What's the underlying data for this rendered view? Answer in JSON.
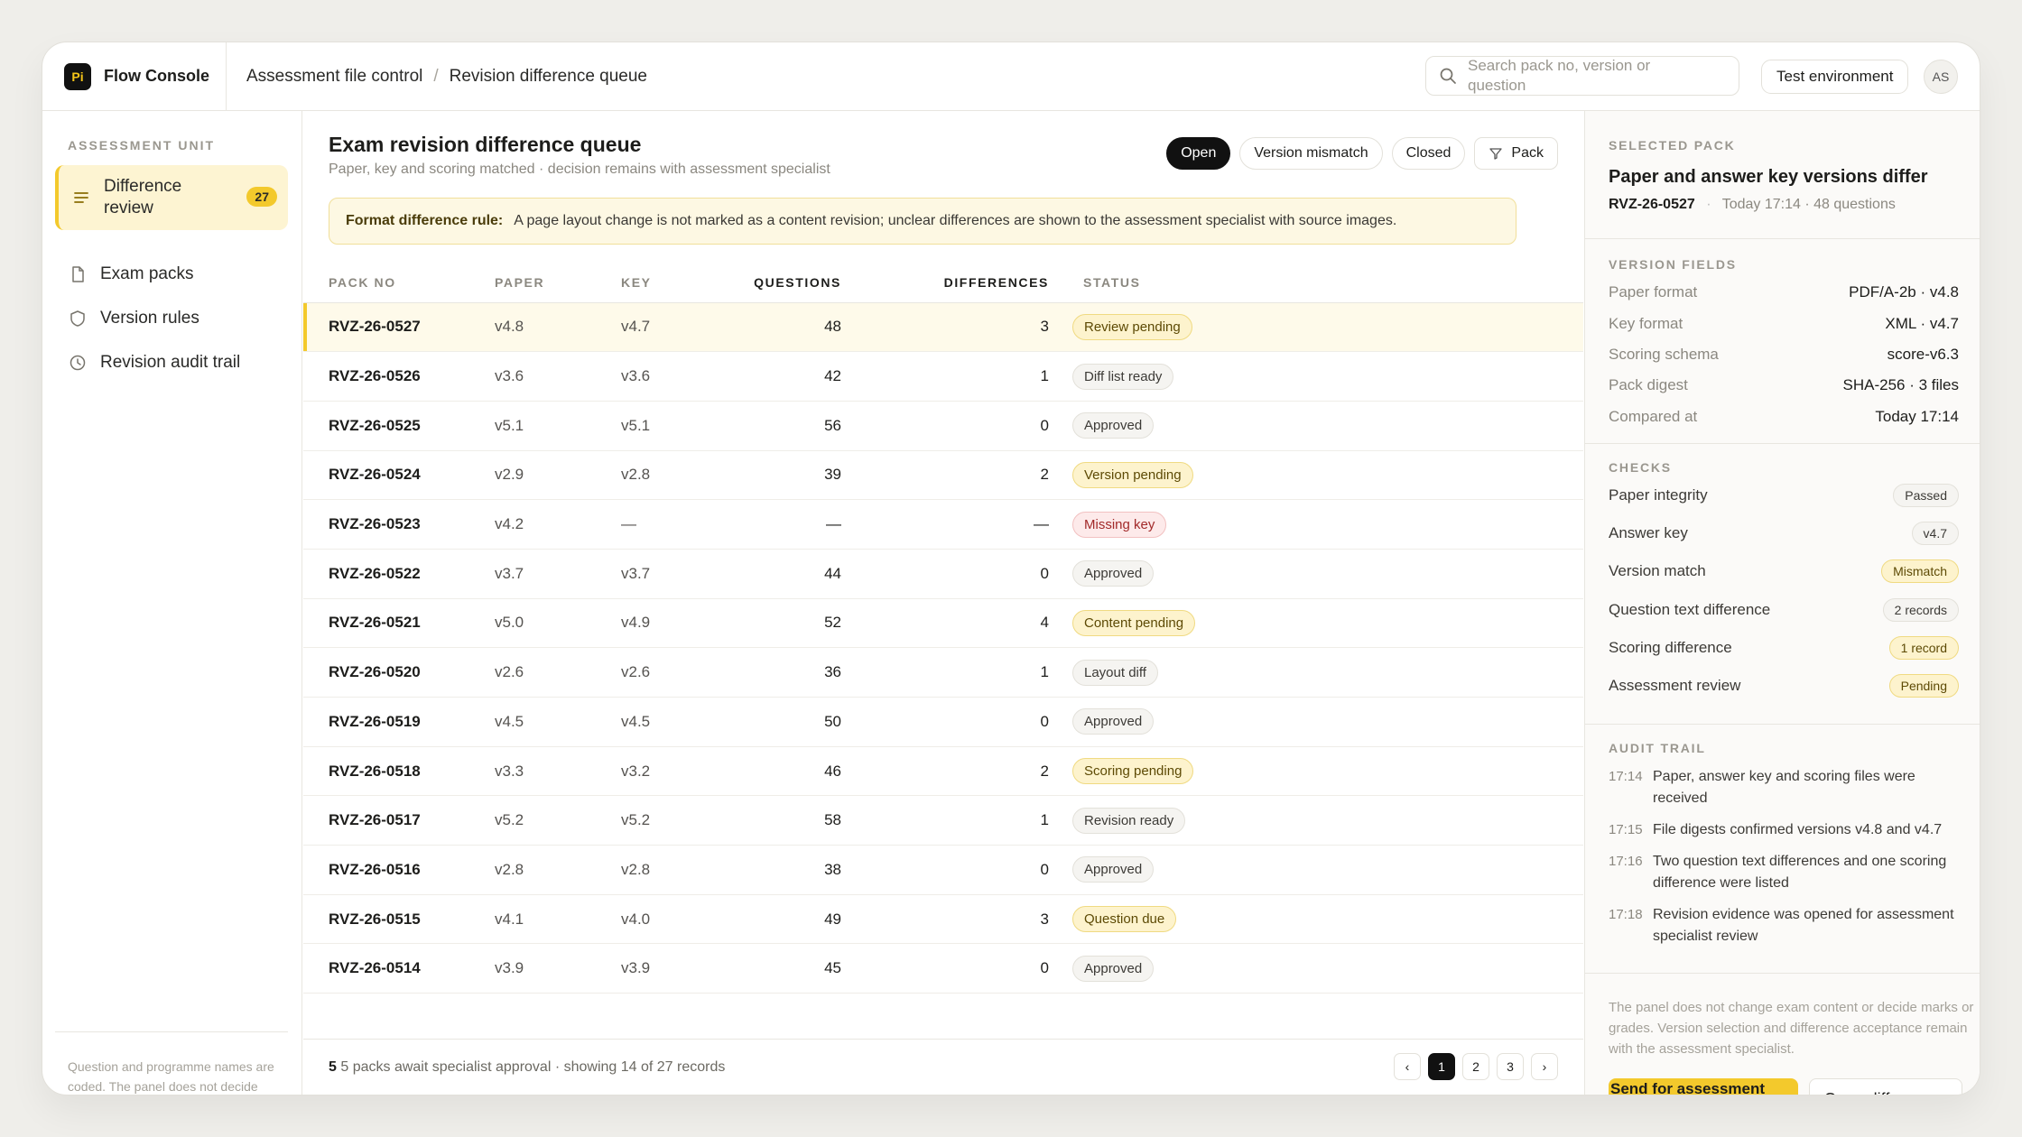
{
  "app": {
    "name": "Flow Console",
    "logo": "Pi"
  },
  "breadcrumb": [
    "Assessment file control",
    "Revision difference queue"
  ],
  "search": {
    "placeholder": "Search pack no, version or question"
  },
  "environment": "Test environment",
  "user_initials": "AS",
  "sidebar": {
    "heading": "ASSESSMENT UNIT",
    "items": [
      {
        "label": "Difference review",
        "count": "27",
        "icon": "list-icon"
      },
      {
        "label": "Exam packs",
        "icon": "document-icon"
      },
      {
        "label": "Version rules",
        "icon": "shield-icon"
      },
      {
        "label": "Revision audit trail",
        "icon": "clock-icon"
      }
    ],
    "footnote": "Question and programme names are coded. The panel does not decide content, marks or grades."
  },
  "main": {
    "title": "Exam revision difference queue",
    "subtitle": "Paper, key and scoring matched · decision remains with assessment specialist",
    "filters": [
      "Open",
      "Version mismatch",
      "Closed",
      "Pack"
    ],
    "rule_label": "Format difference rule:",
    "rule_text": "A page layout change is not marked as a content revision; unclear differences are shown to the assessment specialist with source images.",
    "columns": [
      "PACK NO",
      "PAPER",
      "KEY",
      "QUESTIONS",
      "DIFFERENCES",
      "STATUS"
    ],
    "rows": [
      {
        "pack": "RVZ-26-0527",
        "paper": "v4.8",
        "key": "v4.7",
        "questions": "48",
        "diffs": "3",
        "status": "Review pending",
        "tone": "yellow"
      },
      {
        "pack": "RVZ-26-0526",
        "paper": "v3.6",
        "key": "v3.6",
        "questions": "42",
        "diffs": "1",
        "status": "Diff list ready",
        "tone": "grey"
      },
      {
        "pack": "RVZ-26-0525",
        "paper": "v5.1",
        "key": "v5.1",
        "questions": "56",
        "diffs": "0",
        "status": "Approved",
        "tone": "grey"
      },
      {
        "pack": "RVZ-26-0524",
        "paper": "v2.9",
        "key": "v2.8",
        "questions": "39",
        "diffs": "2",
        "status": "Version pending",
        "tone": "yellow"
      },
      {
        "pack": "RVZ-26-0523",
        "paper": "v4.2",
        "key": "—",
        "questions": "—",
        "diffs": "—",
        "status": "Missing key",
        "tone": "red"
      },
      {
        "pack": "RVZ-26-0522",
        "paper": "v3.7",
        "key": "v3.7",
        "questions": "44",
        "diffs": "0",
        "status": "Approved",
        "tone": "grey"
      },
      {
        "pack": "RVZ-26-0521",
        "paper": "v5.0",
        "key": "v4.9",
        "questions": "52",
        "diffs": "4",
        "status": "Content pending",
        "tone": "yellow"
      },
      {
        "pack": "RVZ-26-0520",
        "paper": "v2.6",
        "key": "v2.6",
        "questions": "36",
        "diffs": "1",
        "status": "Layout diff",
        "tone": "grey"
      },
      {
        "pack": "RVZ-26-0519",
        "paper": "v4.5",
        "key": "v4.5",
        "questions": "50",
        "diffs": "0",
        "status": "Approved",
        "tone": "grey"
      },
      {
        "pack": "RVZ-26-0518",
        "paper": "v3.3",
        "key": "v3.2",
        "questions": "46",
        "diffs": "2",
        "status": "Scoring pending",
        "tone": "yellow"
      },
      {
        "pack": "RVZ-26-0517",
        "paper": "v5.2",
        "key": "v5.2",
        "questions": "58",
        "diffs": "1",
        "status": "Revision ready",
        "tone": "grey"
      },
      {
        "pack": "RVZ-26-0516",
        "paper": "v2.8",
        "key": "v2.8",
        "questions": "38",
        "diffs": "0",
        "status": "Approved",
        "tone": "grey"
      },
      {
        "pack": "RVZ-26-0515",
        "paper": "v4.1",
        "key": "v4.0",
        "questions": "49",
        "diffs": "3",
        "status": "Question due",
        "tone": "yellow"
      },
      {
        "pack": "RVZ-26-0514",
        "paper": "v3.9",
        "key": "v3.9",
        "questions": "45",
        "diffs": "0",
        "status": "Approved",
        "tone": "grey"
      }
    ],
    "footer_count": "5",
    "footer_text": "5 packs await specialist approval · showing 14 of 27 records",
    "pages": [
      "‹",
      "1",
      "2",
      "3",
      "›"
    ]
  },
  "panel": {
    "selected_heading": "SELECTED PACK",
    "selected_title": "Paper and answer key versions differ",
    "selected_pack": "RVZ-26-0527",
    "selected_meta": "Today 17:14 · 48 questions",
    "fields_heading": "VERSION FIELDS",
    "fields": [
      {
        "k": "Paper format",
        "v": "PDF/A-2b · v4.8"
      },
      {
        "k": "Key format",
        "v": "XML · v4.7"
      },
      {
        "k": "Scoring schema",
        "v": "score-v6.3"
      },
      {
        "k": "Pack digest",
        "v": "SHA-256 · 3 files"
      },
      {
        "k": "Compared at",
        "v": "Today 17:14"
      }
    ],
    "checks_heading": "CHECKS",
    "checks": [
      {
        "k": "Paper integrity",
        "v": "Passed",
        "tone": "grey"
      },
      {
        "k": "Answer key",
        "v": "v4.7",
        "tone": "grey"
      },
      {
        "k": "Version match",
        "v": "Mismatch",
        "tone": "yellow"
      },
      {
        "k": "Question text difference",
        "v": "2 records",
        "tone": "grey"
      },
      {
        "k": "Scoring difference",
        "v": "1 record",
        "tone": "yellow"
      },
      {
        "k": "Assessment review",
        "v": "Pending",
        "tone": "yellow"
      }
    ],
    "audit_heading": "AUDIT TRAIL",
    "audit": [
      {
        "t": "17:14",
        "text": "Paper, answer key and scoring files were received"
      },
      {
        "t": "17:15",
        "text": "File digests confirmed versions v4.8 and v4.7"
      },
      {
        "t": "17:16",
        "text": "Two question text differences and one scoring difference were listed"
      },
      {
        "t": "17:18",
        "text": "Revision evidence was opened for assessment specialist review"
      }
    ],
    "foot_note": "The panel does not change exam content or decide marks or grades. Version selection and difference acceptance remain with the assessment specialist.",
    "primary_btn": "Send for assessment review",
    "secondary_btn": "Open differences"
  },
  "colors": {
    "accent": "#f3c92c",
    "ink": "#111111"
  }
}
